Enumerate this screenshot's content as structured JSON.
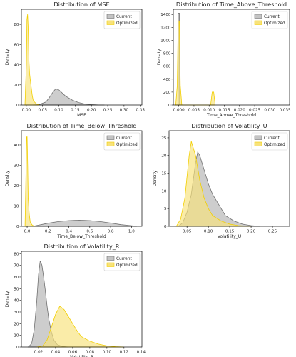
{
  "colors": {
    "current_fill": "#c4c4c4",
    "current_line": "#707070",
    "optimized_fill": "#f7e27a",
    "optimized_line": "#f2cf00"
  },
  "chart_data": [
    {
      "type": "area",
      "title": "Distribution of MSE",
      "xlabel": "MSE",
      "ylabel": "Density",
      "xlim": [
        -0.015,
        0.355
      ],
      "ylim": [
        0,
        95
      ],
      "xticks": [
        0.0,
        0.05,
        0.1,
        0.15,
        0.2,
        0.25,
        0.3,
        0.35
      ],
      "xtick_labels": [
        "0.00",
        "0.05",
        "0.10",
        "0.15",
        "0.20",
        "0.25",
        "0.30",
        "0.35"
      ],
      "yticks": [
        0,
        20,
        40,
        60,
        80
      ],
      "ytick_labels": [
        "0",
        "20",
        "40",
        "60",
        "80"
      ],
      "legend": "top-right",
      "grid": false,
      "series": [
        {
          "name": "Current",
          "x": [
            0.02,
            0.04,
            0.06,
            0.07,
            0.08,
            0.09,
            0.1,
            0.11,
            0.12,
            0.14,
            0.16,
            0.18,
            0.2,
            0.22,
            0.24
          ],
          "y": [
            0,
            0.5,
            3,
            7,
            12,
            16,
            15,
            12,
            9,
            5,
            2.5,
            1,
            0.4,
            0.1,
            0
          ]
        },
        {
          "name": "Optimized",
          "x": [
            -0.004,
            0.0,
            0.002,
            0.004,
            0.006,
            0.008,
            0.01,
            0.012,
            0.015,
            0.018,
            0.021,
            0.025,
            0.03,
            0.035,
            0.04
          ],
          "y": [
            0,
            40,
            85,
            90,
            75,
            45,
            32,
            26,
            18,
            10,
            5,
            3,
            1.5,
            0.5,
            0
          ]
        }
      ]
    },
    {
      "type": "area",
      "title": "Distribution of Time_Above_Threshold",
      "xlabel": "Time_Above_Threshold",
      "ylabel": "Density",
      "xlim": [
        -0.0018,
        0.0365
      ],
      "ylim": [
        0,
        1480
      ],
      "xticks": [
        0.0,
        0.005,
        0.01,
        0.015,
        0.02,
        0.025,
        0.03,
        0.035
      ],
      "xtick_labels": [
        "0.000",
        "0.005",
        "0.010",
        "0.015",
        "0.020",
        "0.025",
        "0.030",
        "0.035"
      ],
      "yticks": [
        0,
        200,
        400,
        600,
        800,
        1000,
        1200,
        1400
      ],
      "ytick_labels": [
        "0",
        "200",
        "400",
        "600",
        "800",
        "1000",
        "1200",
        "1400"
      ],
      "legend": "top-right",
      "grid": false,
      "series": [
        {
          "name": "Current",
          "x": [
            -0.0003,
            -0.0002,
            0.0,
            0.0002,
            0.0003
          ],
          "y": [
            0,
            1420,
            1420,
            1420,
            0
          ]
        },
        {
          "name": "Optimized",
          "x": [
            -0.001,
            -0.0005,
            -0.0002,
            0.0,
            0.0002,
            0.0005,
            0.001,
            0.0105,
            0.011,
            0.0115,
            0.012
          ],
          "y": [
            0,
            300,
            1300,
            1300,
            1300,
            300,
            0,
            0,
            200,
            200,
            0
          ]
        }
      ]
    },
    {
      "type": "area",
      "title": "Distribution of Time_Below_Threshold",
      "xlabel": "Time_Below_Threshold",
      "ylabel": "Density",
      "xlim": [
        -0.055,
        1.1
      ],
      "ylim": [
        0,
        47
      ],
      "xticks": [
        0.0,
        0.2,
        0.4,
        0.6,
        0.8,
        1.0
      ],
      "xtick_labels": [
        "0.0",
        "0.2",
        "0.4",
        "0.6",
        "0.8",
        "1.0"
      ],
      "yticks": [
        0,
        10,
        20,
        30,
        40
      ],
      "ytick_labels": [
        "0",
        "10",
        "20",
        "30",
        "40"
      ],
      "legend": "top-right",
      "grid": false,
      "series": [
        {
          "name": "Current",
          "x": [
            0.05,
            0.1,
            0.2,
            0.3,
            0.4,
            0.5,
            0.6,
            0.7,
            0.8,
            0.9,
            1.0,
            1.05
          ],
          "y": [
            0,
            0.5,
            1.5,
            2.3,
            2.8,
            3.0,
            2.8,
            2.3,
            1.6,
            0.8,
            0.3,
            0
          ]
        },
        {
          "name": "Optimized",
          "x": [
            -0.02,
            -0.005,
            0.0,
            0.005,
            0.01,
            0.02,
            0.03,
            0.05,
            0.08
          ],
          "y": [
            0,
            44,
            44,
            30,
            14,
            6,
            2,
            0.5,
            0
          ]
        }
      ]
    },
    {
      "type": "area",
      "title": "Distribution of Volatility_U",
      "xlabel": "Volatility_U",
      "ylabel": "Density",
      "xlim": [
        0.008,
        0.29
      ],
      "ylim": [
        0,
        27
      ],
      "xticks": [
        0.05,
        0.1,
        0.15,
        0.2,
        0.25
      ],
      "xtick_labels": [
        "0.05",
        "0.10",
        "0.15",
        "0.20",
        "0.25"
      ],
      "yticks": [
        0,
        5,
        10,
        15,
        20,
        25
      ],
      "ytick_labels": [
        "0",
        "5",
        "10",
        "15",
        "20",
        "25"
      ],
      "legend": "top-right",
      "grid": false,
      "series": [
        {
          "name": "Current",
          "x": [
            0.03,
            0.04,
            0.05,
            0.06,
            0.07,
            0.075,
            0.08,
            0.09,
            0.1,
            0.11,
            0.12,
            0.13,
            0.14,
            0.16,
            0.18,
            0.2,
            0.22
          ],
          "y": [
            0,
            1,
            4,
            9,
            18,
            21,
            20,
            16,
            12,
            9,
            7,
            5,
            3,
            1.5,
            0.6,
            0.2,
            0
          ]
        },
        {
          "name": "Optimized",
          "x": [
            0.025,
            0.035,
            0.045,
            0.055,
            0.06,
            0.065,
            0.07,
            0.08,
            0.09,
            0.1,
            0.11,
            0.13,
            0.15,
            0.17,
            0.2
          ],
          "y": [
            0,
            2,
            8,
            20,
            24,
            22,
            20,
            13,
            8,
            5,
            3,
            1.5,
            0.6,
            0.2,
            0
          ]
        }
      ]
    },
    {
      "type": "area",
      "title": "Distribution of Volatility_R",
      "xlabel": "Volatility_R",
      "ylabel": "Density",
      "xlim": [
        0.0,
        0.141
      ],
      "ylim": [
        0,
        82
      ],
      "xticks": [
        0.02,
        0.04,
        0.06,
        0.08,
        0.1,
        0.12,
        0.14
      ],
      "xtick_labels": [
        "0.02",
        "0.04",
        "0.06",
        "0.08",
        "0.10",
        "0.12",
        "0.14"
      ],
      "yticks": [
        0,
        10,
        20,
        30,
        40,
        50,
        60,
        70,
        80
      ],
      "ytick_labels": [
        "0",
        "10",
        "20",
        "30",
        "40",
        "50",
        "60",
        "70",
        "80"
      ],
      "legend": "top-right",
      "grid": false,
      "series": [
        {
          "name": "Current",
          "x": [
            0.008,
            0.012,
            0.015,
            0.018,
            0.02,
            0.022,
            0.024,
            0.026,
            0.028,
            0.03,
            0.032,
            0.035,
            0.038,
            0.042,
            0.048,
            0.055
          ],
          "y": [
            0,
            3,
            15,
            40,
            62,
            74,
            70,
            60,
            48,
            35,
            24,
            13,
            6,
            2,
            0.5,
            0
          ]
        },
        {
          "name": "Optimized",
          "x": [
            0.018,
            0.025,
            0.03,
            0.035,
            0.04,
            0.045,
            0.05,
            0.055,
            0.06,
            0.065,
            0.07,
            0.08,
            0.09,
            0.1,
            0.11,
            0.12
          ],
          "y": [
            0,
            1,
            6,
            17,
            28,
            35,
            32,
            26,
            20,
            14,
            9,
            5,
            2.5,
            1,
            0.3,
            0
          ]
        }
      ]
    }
  ]
}
